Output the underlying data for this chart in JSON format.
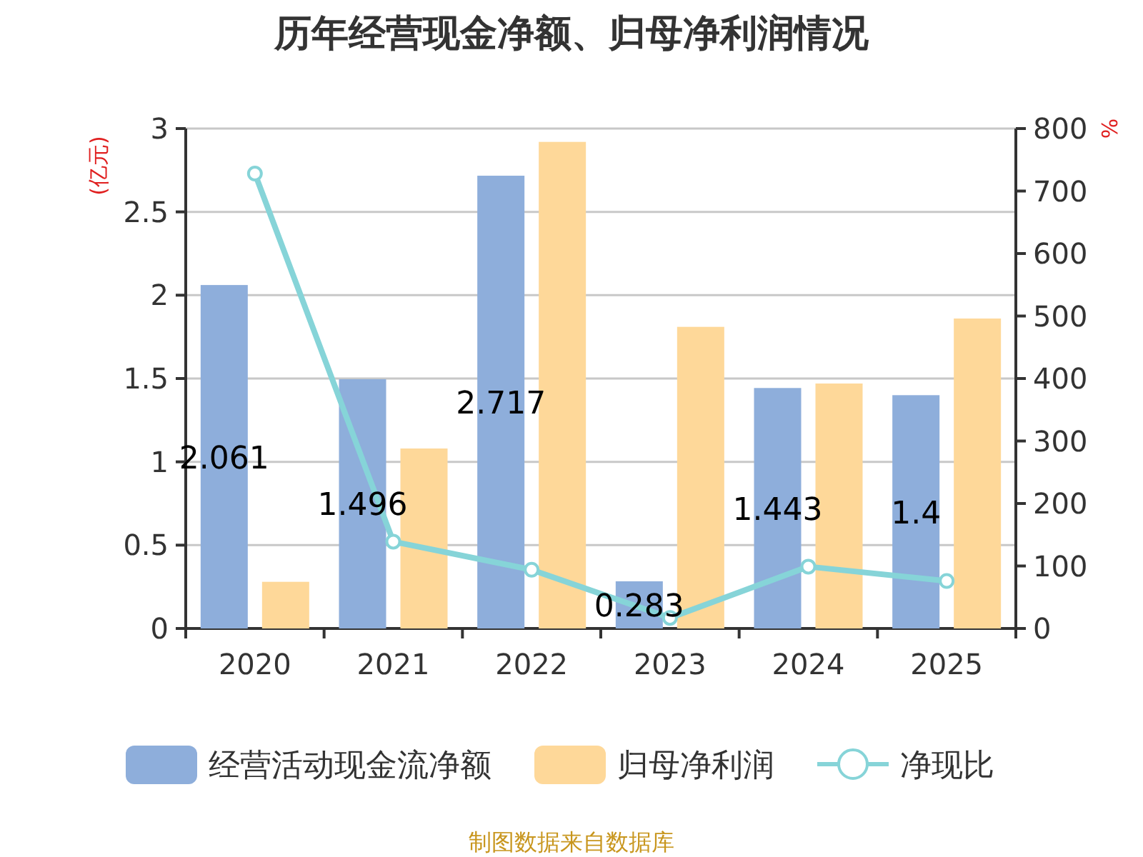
{
  "chart_data": {
    "type": "bar",
    "title": "历年经营现金净额、归母净利润情况",
    "ylabel": "(亿元)",
    "y2label": "%",
    "categories": [
      "2020",
      "2021",
      "2022",
      "2023",
      "2024",
      "2025"
    ],
    "series": [
      {
        "name": "经营活动现金流净额",
        "color": "#8eaedb",
        "values": [
          2.061,
          1.496,
          2.717,
          0.283,
          1.443,
          1.4
        ],
        "value_labels": [
          "2.061",
          "1.496",
          "2.717",
          "0.283",
          "1.443",
          "1.4"
        ]
      },
      {
        "name": "归母净利润",
        "color": "#fed899",
        "values": [
          0.28,
          1.08,
          2.92,
          1.81,
          1.47,
          1.86
        ]
      },
      {
        "name": "净现比",
        "type": "line",
        "axis": "y2",
        "color": "#86d4d8",
        "marker": "circle",
        "values": [
          728,
          139,
          94,
          17,
          99,
          76
        ]
      }
    ],
    "ylim": [
      0,
      3
    ],
    "yticks": [
      0,
      0.5,
      1,
      1.5,
      2,
      2.5,
      3
    ],
    "y2lim": [
      0,
      800
    ],
    "y2ticks": [
      0,
      100,
      200,
      300,
      400,
      500,
      600,
      700,
      800
    ],
    "grid": "y",
    "legend": "bottom",
    "annotations": [
      "制图数据来自数据库"
    ]
  }
}
